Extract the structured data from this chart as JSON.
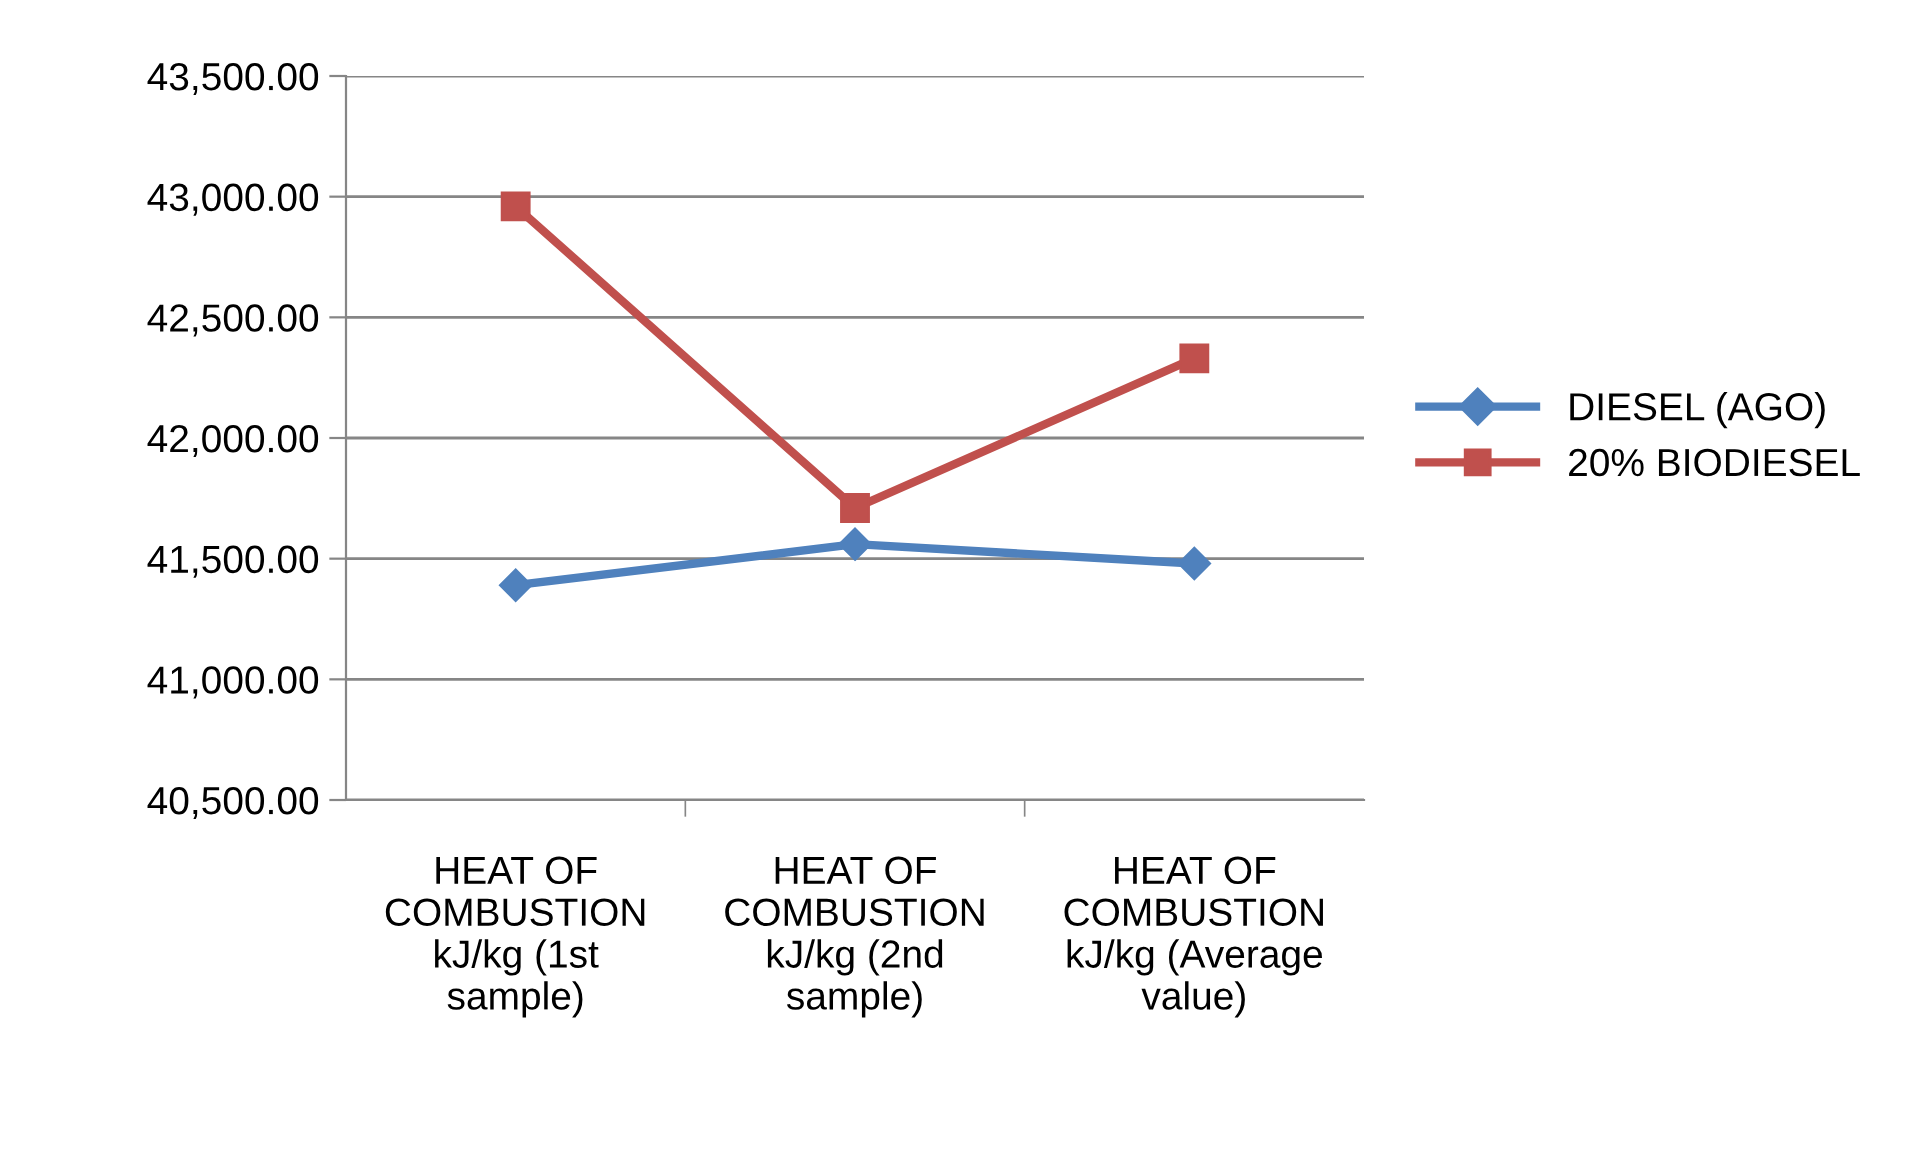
{
  "chart_data": {
    "type": "line",
    "categories": [
      "HEAT OF\nCOMBUSTION\nkJ/kg (1st\nsample)",
      "HEAT OF\nCOMBUSTION\nkJ/kg (2nd\nsample)",
      "HEAT OF\nCOMBUSTION\nkJ/kg (Average\nvalue)"
    ],
    "series": [
      {
        "name": "DIESEL (AGO)",
        "color": "#4f81bd",
        "marker": "diamond",
        "values": [
          41390,
          41560,
          41480
        ]
      },
      {
        "name": "20% BIODIESEL",
        "color": "#c0504d",
        "marker": "square",
        "values": [
          42960,
          41710,
          42330
        ]
      }
    ],
    "ylim": [
      40500,
      43500
    ],
    "yticks": [
      {
        "value": 40500,
        "label": "40,500.00"
      },
      {
        "value": 41000,
        "label": "41,000.00"
      },
      {
        "value": 41500,
        "label": "41,500.00"
      },
      {
        "value": 42000,
        "label": "42,000.00"
      },
      {
        "value": 42500,
        "label": "42,500.00"
      },
      {
        "value": 43000,
        "label": "43,000.00"
      },
      {
        "value": 43500,
        "label": "43,500.00"
      }
    ],
    "grid": "y",
    "legend": "right",
    "line_style": "solid"
  }
}
